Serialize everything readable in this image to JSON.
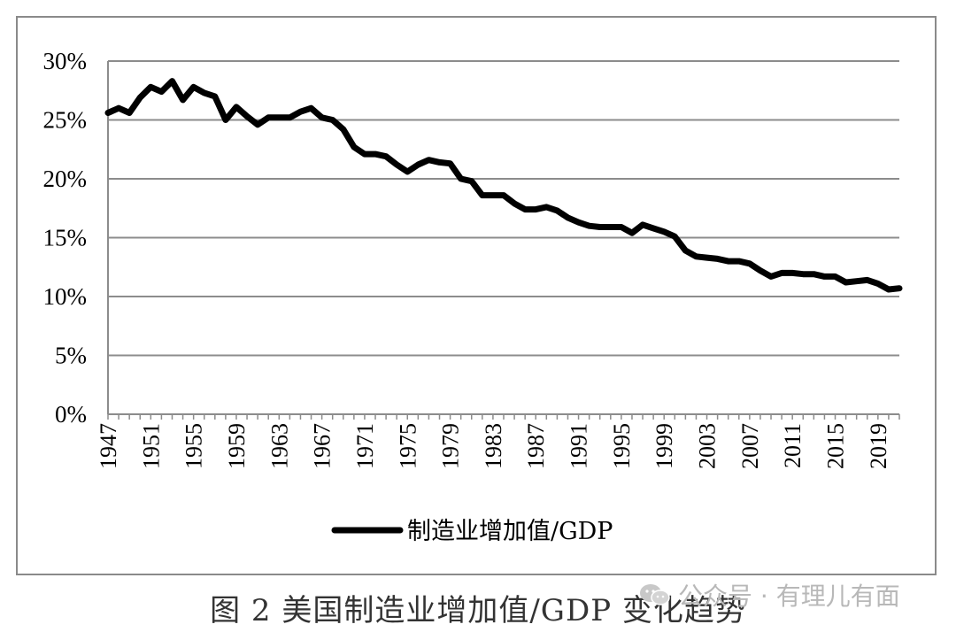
{
  "chart_data": {
    "type": "line",
    "title": "",
    "xlabel": "",
    "ylabel": "",
    "ylim": [
      0,
      30
    ],
    "yticks": [
      "0%",
      "5%",
      "10%",
      "15%",
      "20%",
      "25%",
      "30%"
    ],
    "xticks": [
      "1947",
      "1951",
      "1955",
      "1959",
      "1963",
      "1967",
      "1971",
      "1975",
      "1979",
      "1983",
      "1987",
      "1991",
      "1995",
      "1999",
      "2003",
      "2007",
      "2011",
      "2015",
      "2019"
    ],
    "grid": "horizontal",
    "legend": "bottom-center",
    "series": [
      {
        "name": "制造业增加值/GDP",
        "x": [
          1947,
          1948,
          1949,
          1950,
          1951,
          1952,
          1953,
          1954,
          1955,
          1956,
          1957,
          1958,
          1959,
          1960,
          1961,
          1962,
          1963,
          1964,
          1965,
          1966,
          1967,
          1968,
          1969,
          1970,
          1971,
          1972,
          1973,
          1974,
          1975,
          1976,
          1977,
          1978,
          1979,
          1980,
          1981,
          1982,
          1983,
          1984,
          1985,
          1986,
          1987,
          1988,
          1989,
          1990,
          1991,
          1992,
          1993,
          1994,
          1995,
          1996,
          1997,
          1998,
          1999,
          2000,
          2001,
          2002,
          2003,
          2004,
          2005,
          2006,
          2007,
          2008,
          2009,
          2010,
          2011,
          2012,
          2013,
          2014,
          2015,
          2016,
          2017,
          2018,
          2019,
          2020,
          2021
        ],
        "values": [
          25.6,
          26.0,
          25.6,
          26.9,
          27.8,
          27.4,
          28.3,
          26.7,
          27.8,
          27.3,
          27.0,
          25.0,
          26.1,
          25.3,
          24.6,
          25.2,
          25.2,
          25.2,
          25.7,
          26.0,
          25.2,
          25.0,
          24.2,
          22.7,
          22.1,
          22.1,
          21.9,
          21.2,
          20.6,
          21.2,
          21.6,
          21.4,
          21.3,
          20.0,
          19.8,
          18.6,
          18.6,
          18.6,
          17.9,
          17.4,
          17.4,
          17.6,
          17.3,
          16.7,
          16.3,
          16.0,
          15.9,
          15.9,
          15.9,
          15.4,
          16.1,
          15.8,
          15.5,
          15.1,
          13.9,
          13.4,
          13.3,
          13.2,
          13.0,
          13.0,
          12.8,
          12.2,
          11.7,
          12.0,
          12.0,
          11.9,
          11.9,
          11.7,
          11.7,
          11.2,
          11.3,
          11.4,
          11.1,
          10.6,
          10.7
        ]
      }
    ],
    "line_color": "#000000"
  },
  "caption": "图 2  美国制造业增加值/GDP 变化趋势",
  "watermark": "公众号 · 有理儿有面"
}
